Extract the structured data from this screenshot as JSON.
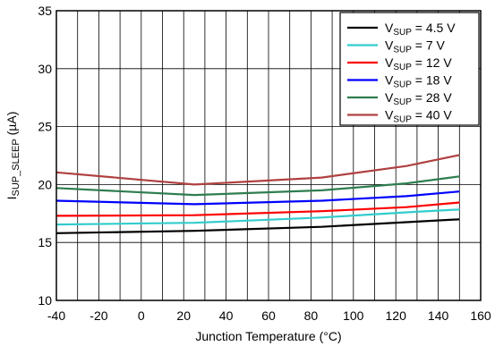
{
  "chart_data": {
    "type": "line",
    "xlabel": "Junction Temperature (°C)",
    "ylabel": {
      "main": "I",
      "sub": "SUP_SLEEP",
      "unit": " (µA)"
    },
    "xlim": [
      -40,
      160
    ],
    "ylim": [
      10,
      35
    ],
    "xticks": [
      -40,
      -20,
      0,
      20,
      40,
      60,
      80,
      100,
      120,
      140,
      160
    ],
    "yticks": [
      10,
      15,
      20,
      25,
      30,
      35
    ],
    "x_grid_step": 10,
    "y_grid_step": 5,
    "grid": true,
    "legend_position": "top-right",
    "series": [
      {
        "name": {
          "main": "V",
          "sub": "SUP",
          "rest": " = 4.5 V"
        },
        "color": "#000000",
        "x": [
          -40,
          25,
          85,
          125,
          150
        ],
        "y": [
          15.8,
          16.0,
          16.35,
          16.75,
          17.0
        ]
      },
      {
        "name": {
          "main": "V",
          "sub": "SUP",
          "rest": " = 7 V"
        },
        "color": "#33cccc",
        "x": [
          -40,
          25,
          85,
          125,
          150
        ],
        "y": [
          16.55,
          16.7,
          17.15,
          17.6,
          17.85
        ]
      },
      {
        "name": {
          "main": "V",
          "sub": "SUP",
          "rest": " = 12 V"
        },
        "color": "#ff0000",
        "x": [
          -40,
          25,
          85,
          125,
          150
        ],
        "y": [
          17.3,
          17.35,
          17.7,
          18.05,
          18.45
        ]
      },
      {
        "name": {
          "main": "V",
          "sub": "SUP",
          "rest": " = 18 V"
        },
        "color": "#0000ff",
        "x": [
          -40,
          25,
          85,
          125,
          150
        ],
        "y": [
          18.6,
          18.3,
          18.6,
          19.0,
          19.4
        ]
      },
      {
        "name": {
          "main": "V",
          "sub": "SUP",
          "rest": " = 28 V"
        },
        "color": "#2e7d4f",
        "x": [
          -40,
          25,
          85,
          125,
          150
        ],
        "y": [
          19.7,
          19.1,
          19.5,
          20.1,
          20.7
        ]
      },
      {
        "name": {
          "main": "V",
          "sub": "SUP",
          "rest": " = 40 V"
        },
        "color": "#b04040",
        "x": [
          -40,
          25,
          85,
          125,
          150
        ],
        "y": [
          21.05,
          20.0,
          20.6,
          21.6,
          22.55
        ]
      }
    ]
  }
}
